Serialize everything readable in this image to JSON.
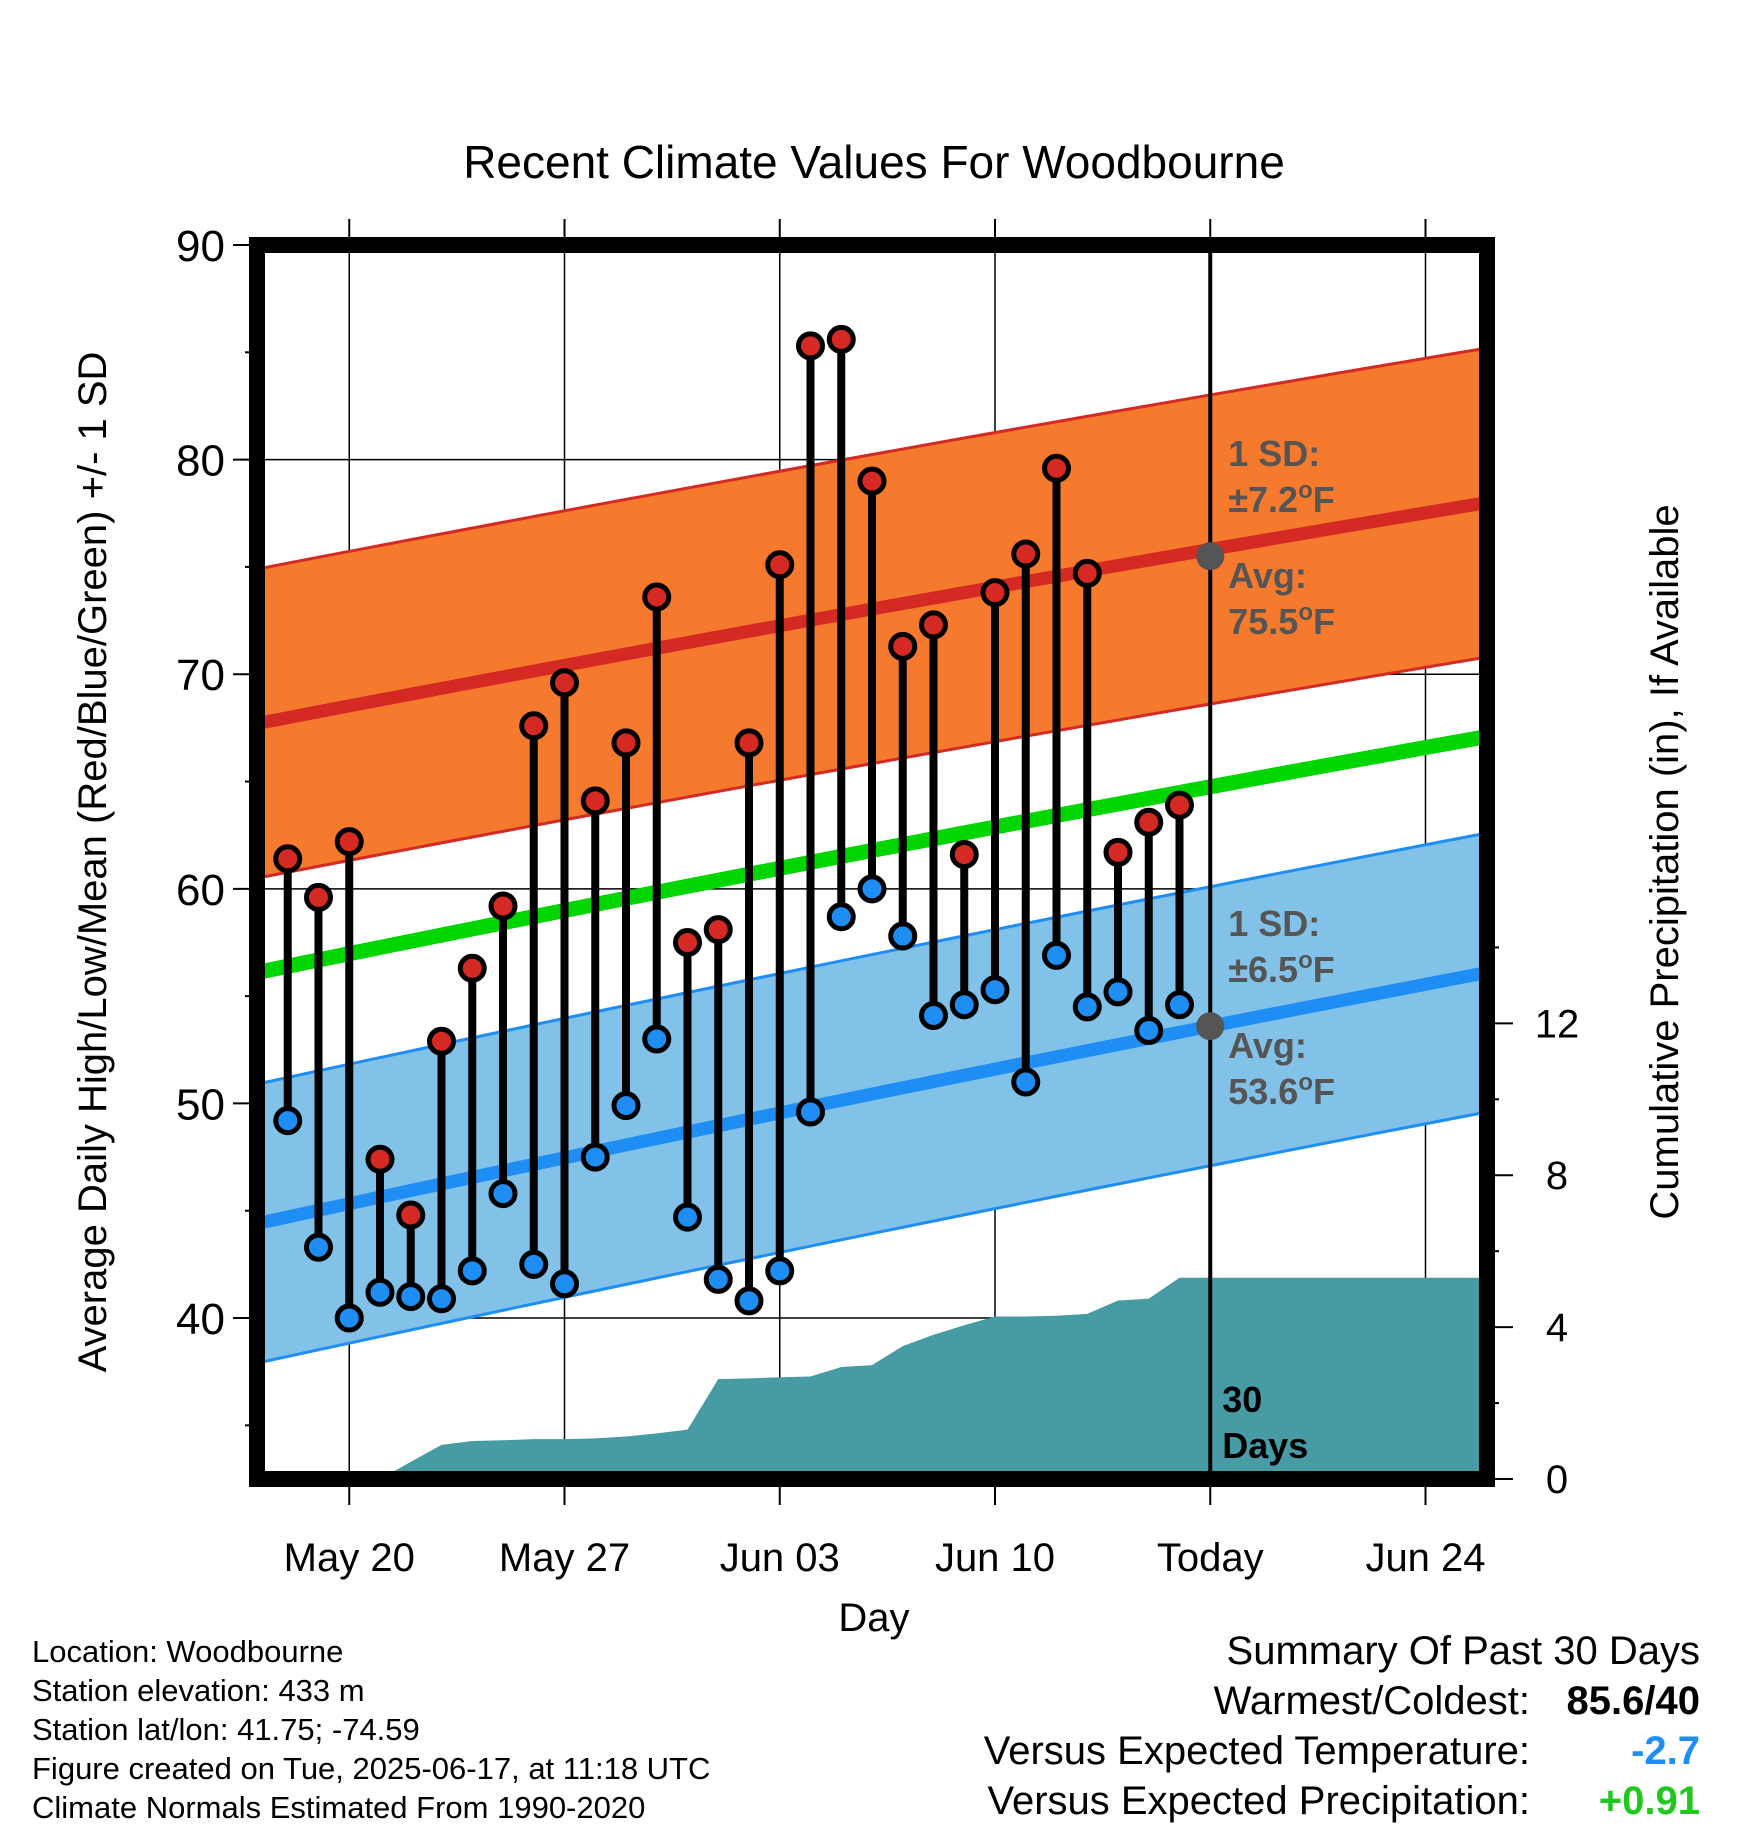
{
  "chart_data": {
    "type": "line",
    "title": "Recent Climate Values For Woodbourne",
    "xlabel": "Day",
    "ylabel": "Average Daily High/Low/Mean (Red/Blue/Green) +/- 1 SD",
    "y2label": "Cumulative Precipitation (in), If Available",
    "ylim": [
      32.5,
      90
    ],
    "y2lim": [
      0,
      32.5
    ],
    "yticks": [
      40,
      50,
      60,
      70,
      80,
      90
    ],
    "y2ticks": [
      0,
      4,
      8,
      12
    ],
    "xlim": [
      "2025-05-17",
      "2025-06-26"
    ],
    "xtick_dates": [
      "2025-05-20",
      "2025-05-27",
      "2025-06-03",
      "2025-06-10",
      "2025-06-17",
      "2025-06-24"
    ],
    "xtick_labels": [
      "May 20",
      "May 27",
      "Jun 03",
      "Jun 10",
      "Today",
      "Jun 24"
    ],
    "grid": true,
    "today": "2025-06-17",
    "today_label": "30\nDays",
    "colors": {
      "high": "#d42a23",
      "low": "#1e8ef5",
      "high_band": "#f57a2e",
      "low_band": "#82c1e8",
      "mean": "#00d500",
      "precip": "#479ba5",
      "annotation": "#555555"
    },
    "series": [
      {
        "name": "High",
        "x": [
          "2025-05-18",
          "2025-05-19",
          "2025-05-20",
          "2025-05-21",
          "2025-05-22",
          "2025-05-23",
          "2025-05-24",
          "2025-05-25",
          "2025-05-26",
          "2025-05-27",
          "2025-05-28",
          "2025-05-29",
          "2025-05-30",
          "2025-05-31",
          "2025-06-01",
          "2025-06-02",
          "2025-06-03",
          "2025-06-04",
          "2025-06-05",
          "2025-06-06",
          "2025-06-07",
          "2025-06-08",
          "2025-06-09",
          "2025-06-10",
          "2025-06-11",
          "2025-06-12",
          "2025-06-13",
          "2025-06-14",
          "2025-06-15",
          "2025-06-16"
        ],
        "values": [
          61.4,
          59.6,
          62.2,
          47.4,
          44.8,
          52.9,
          56.3,
          59.2,
          67.6,
          69.6,
          64.1,
          66.8,
          73.6,
          57.5,
          58.1,
          66.8,
          75.1,
          85.3,
          85.6,
          79.0,
          71.3,
          72.3,
          61.6,
          73.8,
          75.6,
          79.6,
          74.7,
          61.7,
          63.1,
          63.9
        ]
      },
      {
        "name": "Low",
        "x": [
          "2025-05-18",
          "2025-05-19",
          "2025-05-20",
          "2025-05-21",
          "2025-05-22",
          "2025-05-23",
          "2025-05-24",
          "2025-05-25",
          "2025-05-26",
          "2025-05-27",
          "2025-05-28",
          "2025-05-29",
          "2025-05-30",
          "2025-05-31",
          "2025-06-01",
          "2025-06-02",
          "2025-06-03",
          "2025-06-04",
          "2025-06-05",
          "2025-06-06",
          "2025-06-07",
          "2025-06-08",
          "2025-06-09",
          "2025-06-10",
          "2025-06-11",
          "2025-06-12",
          "2025-06-13",
          "2025-06-14",
          "2025-06-15",
          "2025-06-16"
        ],
        "values": [
          49.2,
          43.3,
          40.0,
          41.2,
          41.0,
          40.9,
          42.2,
          45.8,
          42.5,
          41.6,
          47.5,
          49.9,
          53.0,
          44.7,
          41.8,
          40.8,
          42.2,
          49.6,
          58.7,
          60.0,
          57.8,
          54.1,
          54.6,
          55.3,
          51.0,
          56.9,
          54.5,
          55.2,
          53.4,
          54.6
        ]
      },
      {
        "name": "Normal High",
        "x": [
          "2025-05-17",
          "2025-06-26"
        ],
        "values": [
          67.7,
          78.0
        ],
        "sd": 7.2
      },
      {
        "name": "Normal Low",
        "x": [
          "2025-05-17",
          "2025-06-26"
        ],
        "values": [
          44.4,
          56.1
        ],
        "sd": 6.5
      },
      {
        "name": "Normal Mean",
        "x": [
          "2025-05-17",
          "2025-06-26"
        ],
        "values": [
          56.1,
          67.1
        ]
      },
      {
        "name": "Cumulative Precipitation",
        "x": [
          "2025-05-18",
          "2025-05-19",
          "2025-05-20",
          "2025-05-21",
          "2025-05-22",
          "2025-05-23",
          "2025-05-24",
          "2025-05-25",
          "2025-05-26",
          "2025-05-27",
          "2025-05-28",
          "2025-05-29",
          "2025-05-30",
          "2025-05-31",
          "2025-06-01",
          "2025-06-02",
          "2025-06-03",
          "2025-06-04",
          "2025-06-05",
          "2025-06-06",
          "2025-06-07",
          "2025-06-08",
          "2025-06-09",
          "2025-06-10",
          "2025-06-11",
          "2025-06-12",
          "2025-06-13",
          "2025-06-14",
          "2025-06-15",
          "2025-06-16",
          "2025-06-26"
        ],
        "values": [
          0,
          0,
          0,
          0,
          0.45,
          0.9,
          1.0,
          1.02,
          1.05,
          1.05,
          1.07,
          1.12,
          1.2,
          1.3,
          2.63,
          2.65,
          2.68,
          2.7,
          2.95,
          3.0,
          3.5,
          3.8,
          4.05,
          4.28,
          4.28,
          4.3,
          4.35,
          4.7,
          4.75,
          5.3,
          5.3
        ]
      }
    ],
    "annotations": {
      "high_sd": [
        "1 SD:",
        "±7.2",
        "o",
        "F"
      ],
      "high_avg": [
        "Avg:",
        "75.5",
        "o",
        "F"
      ],
      "low_sd": [
        "1 SD:",
        "±6.5",
        "o",
        "F"
      ],
      "low_avg": [
        "Avg:",
        "53.6",
        "o",
        "F"
      ],
      "today_high_avg_value": 75.5,
      "today_low_avg_value": 53.6
    }
  },
  "footer": {
    "location": "Location: Woodbourne",
    "elevation": "Station elevation: 433 m",
    "latlon": "Station lat/lon: 41.75; -74.59",
    "created": "Figure created on Tue, 2025-06-17, at 11:18 UTC",
    "normals": "Climate Normals Estimated From 1990-2020"
  },
  "summary": {
    "title": "Summary Of Past 30 Days",
    "warmest_label": "Warmest/Coldest:",
    "warmest_value": "85.6/40",
    "temp_label": "Versus Expected Temperature:",
    "temp_value": "-2.7",
    "temp_color": "#1e8ef5",
    "precip_label": "Versus Expected Precipitation:",
    "precip_value": "+0.91",
    "precip_color": "#1ec81e"
  }
}
